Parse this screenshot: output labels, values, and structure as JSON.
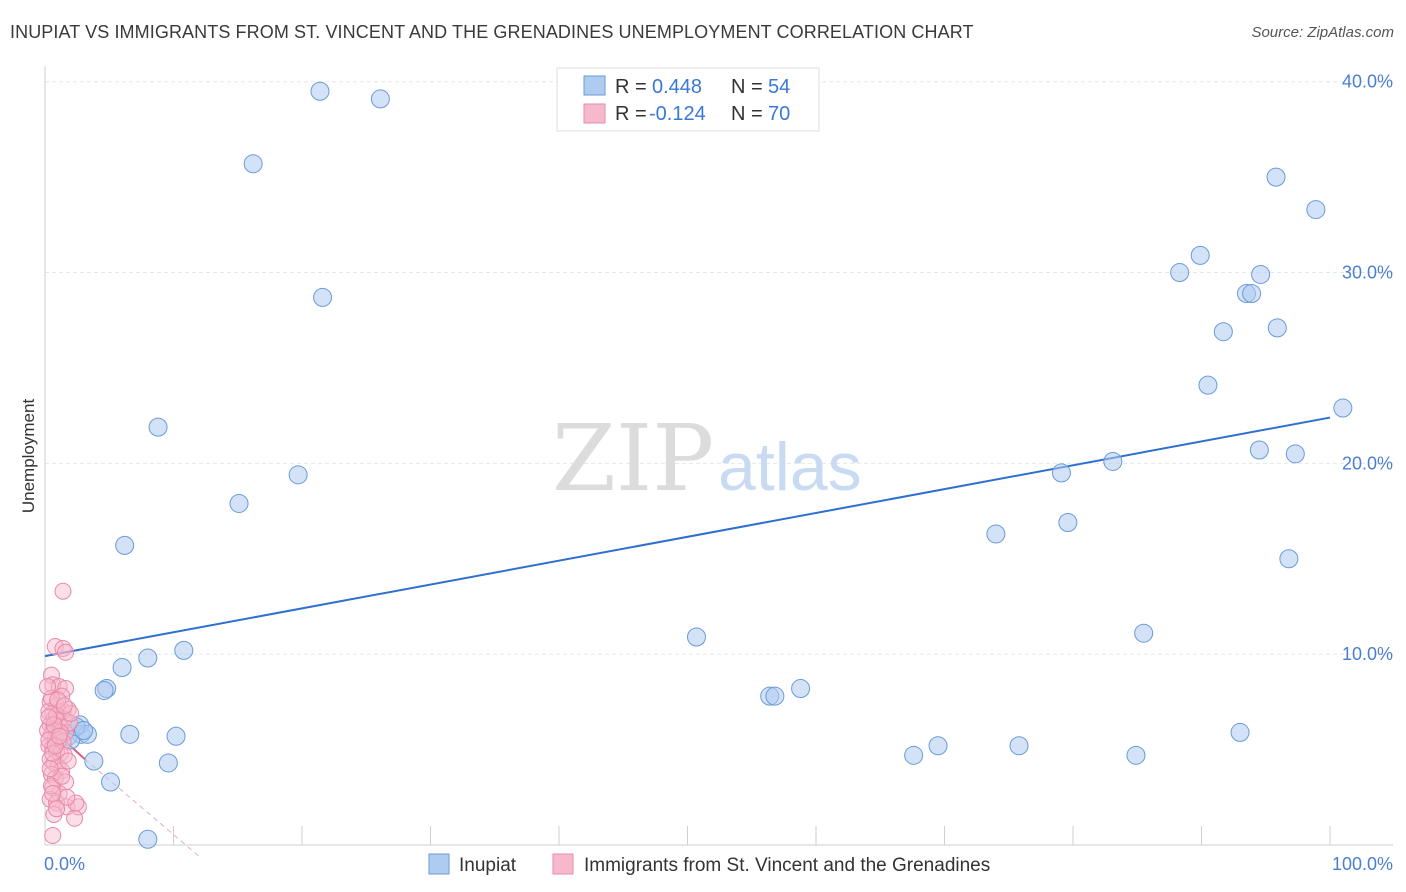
{
  "title": "INUPIAT VS IMMIGRANTS FROM ST. VINCENT AND THE GRENADINES UNEMPLOYMENT CORRELATION CHART",
  "source": "Source: ZipAtlas.com",
  "watermark": {
    "zip": "ZIP",
    "atlas": "atlas"
  },
  "colors": {
    "blue_fill": "#aecbf0",
    "blue_stroke": "#6a9bd8",
    "blue_line": "#2e6fd0",
    "pink_fill": "#f6b9cb",
    "pink_stroke": "#e88aa7",
    "pink_line": "#e05a88",
    "grid": "#e6e6ee",
    "tick_text": "#4a7fd0"
  },
  "legend": {
    "rows": [
      {
        "r_label": "R =",
        "r_value": "0.448",
        "n_label": "N =",
        "n_value": "54",
        "color": "blue"
      },
      {
        "r_label": "R =",
        "r_value": "-0.124",
        "n_label": "N =",
        "n_value": "70",
        "color": "pink"
      }
    ]
  },
  "bottom_legend": [
    {
      "label": "Inupiat",
      "color": "blue"
    },
    {
      "label": "Immigrants from St. Vincent and the Grenadines",
      "color": "pink"
    }
  ],
  "chart_data": {
    "type": "scatter",
    "title": "INUPIAT VS IMMIGRANTS FROM ST. VINCENT AND THE GRENADINES UNEMPLOYMENT CORRELATION CHART",
    "xlabel": "",
    "ylabel": "Unemployment",
    "xlim": [
      0,
      100
    ],
    "ylim": [
      0,
      40
    ],
    "x_tick_labels": [
      "0.0%",
      "100.0%"
    ],
    "y_ticks": [
      10,
      20,
      30,
      40
    ],
    "y_tick_labels": [
      "10.0%",
      "20.0%",
      "30.0%",
      "40.0%"
    ],
    "series": [
      {
        "name": "Inupiat",
        "color": "blue",
        "points": [
          [
            21.4,
            39.5
          ],
          [
            26.1,
            39.1
          ],
          [
            16.2,
            35.7
          ],
          [
            21.6,
            28.7
          ],
          [
            8.8,
            21.9
          ],
          [
            19.7,
            19.4
          ],
          [
            15.1,
            17.9
          ],
          [
            6.2,
            15.7
          ],
          [
            8.0,
            9.8
          ],
          [
            10.8,
            10.2
          ],
          [
            4.8,
            8.2
          ],
          [
            4.6,
            8.1
          ],
          [
            6.0,
            9.3
          ],
          [
            2.7,
            6.3
          ],
          [
            2.8,
            5.8
          ],
          [
            3.3,
            5.8
          ],
          [
            1.8,
            5.7
          ],
          [
            2.0,
            5.5
          ],
          [
            6.6,
            5.8
          ],
          [
            10.2,
            5.7
          ],
          [
            3.8,
            4.4
          ],
          [
            9.6,
            4.3
          ],
          [
            5.1,
            3.3
          ],
          [
            8.0,
            0.3
          ],
          [
            50.7,
            10.9
          ],
          [
            56.4,
            7.8
          ],
          [
            56.8,
            7.8
          ],
          [
            58.8,
            8.2
          ],
          [
            67.6,
            4.7
          ],
          [
            69.5,
            5.2
          ],
          [
            75.8,
            5.2
          ],
          [
            74.0,
            16.3
          ],
          [
            79.1,
            19.5
          ],
          [
            79.6,
            16.9
          ],
          [
            83.1,
            20.1
          ],
          [
            85.5,
            11.1
          ],
          [
            84.9,
            4.7
          ],
          [
            88.3,
            30.0
          ],
          [
            89.9,
            30.9
          ],
          [
            90.5,
            24.1
          ],
          [
            91.7,
            26.9
          ],
          [
            93.5,
            28.9
          ],
          [
            93.9,
            28.9
          ],
          [
            94.6,
            29.9
          ],
          [
            95.8,
            35.0
          ],
          [
            95.9,
            27.1
          ],
          [
            94.5,
            20.7
          ],
          [
            97.3,
            20.5
          ],
          [
            96.8,
            15.0
          ],
          [
            98.9,
            33.3
          ],
          [
            101.0,
            22.9
          ],
          [
            93.0,
            5.9
          ],
          [
            2.4,
            6.2
          ],
          [
            3.0,
            6.0
          ]
        ]
      },
      {
        "name": "Immigrants from St. Vincent and the Grenadines",
        "color": "pink",
        "points": [
          [
            1.4,
            13.3
          ],
          [
            0.8,
            10.4
          ],
          [
            1.4,
            10.3
          ],
          [
            1.6,
            10.1
          ],
          [
            0.5,
            8.9
          ],
          [
            0.6,
            8.4
          ],
          [
            1.1,
            8.3
          ],
          [
            1.6,
            8.2
          ],
          [
            1.3,
            7.8
          ],
          [
            0.4,
            7.5
          ],
          [
            0.9,
            7.3
          ],
          [
            1.4,
            7.0
          ],
          [
            1.8,
            7.1
          ],
          [
            0.6,
            6.9
          ],
          [
            0.7,
            6.6
          ],
          [
            1.0,
            6.5
          ],
          [
            1.5,
            6.6
          ],
          [
            0.4,
            6.3
          ],
          [
            0.7,
            6.1
          ],
          [
            1.2,
            6.2
          ],
          [
            1.6,
            5.9
          ],
          [
            0.5,
            5.8
          ],
          [
            0.8,
            5.6
          ],
          [
            1.1,
            5.5
          ],
          [
            1.4,
            5.4
          ],
          [
            0.3,
            5.2
          ],
          [
            0.6,
            5.1
          ],
          [
            0.9,
            4.9
          ],
          [
            1.2,
            4.8
          ],
          [
            1.5,
            4.7
          ],
          [
            0.4,
            4.5
          ],
          [
            0.7,
            4.3
          ],
          [
            1.0,
            4.1
          ],
          [
            1.3,
            3.9
          ],
          [
            0.5,
            3.7
          ],
          [
            0.8,
            3.5
          ],
          [
            1.6,
            3.3
          ],
          [
            0.6,
            3.0
          ],
          [
            1.1,
            2.7
          ],
          [
            0.4,
            2.4
          ],
          [
            0.9,
            2.2
          ],
          [
            1.7,
            2.0
          ],
          [
            2.6,
            2.0
          ],
          [
            0.7,
            1.6
          ],
          [
            2.3,
            1.4
          ],
          [
            0.6,
            0.5
          ],
          [
            0.3,
            7.0
          ],
          [
            0.5,
            7.7
          ],
          [
            1.9,
            6.4
          ],
          [
            0.2,
            6.0
          ],
          [
            0.3,
            5.5
          ],
          [
            0.6,
            4.8
          ],
          [
            0.9,
            6.8
          ],
          [
            1.2,
            5.9
          ],
          [
            0.5,
            3.1
          ],
          [
            2.0,
            6.9
          ],
          [
            1.3,
            3.6
          ],
          [
            2.4,
            2.2
          ],
          [
            0.8,
            5.2
          ],
          [
            1.0,
            7.6
          ],
          [
            0.4,
            4.0
          ],
          [
            1.7,
            2.5
          ],
          [
            0.7,
            6.3
          ],
          [
            1.5,
            7.3
          ],
          [
            0.2,
            8.3
          ],
          [
            0.6,
            2.7
          ],
          [
            1.8,
            4.4
          ],
          [
            0.9,
            1.9
          ],
          [
            1.1,
            5.7
          ],
          [
            0.3,
            6.7
          ]
        ]
      }
    ],
    "trendlines": [
      {
        "series": "Inupiat",
        "x": [
          0,
          100
        ],
        "y": [
          9.9,
          22.4
        ],
        "style": "solid"
      },
      {
        "series": "Immigrants from St. Vincent and the Grenadines",
        "x": [
          0,
          3.1
        ],
        "y": [
          6.4,
          4.5
        ],
        "style": "solid"
      },
      {
        "series": "Immigrants from St. Vincent and the Grenadines",
        "x": [
          3.1,
          12
        ],
        "y": [
          4.5,
          -0.6
        ],
        "style": "dashed"
      }
    ]
  }
}
